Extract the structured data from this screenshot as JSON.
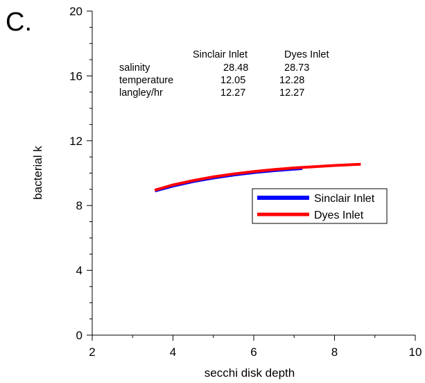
{
  "chart_data": {
    "type": "line",
    "panel_label": "C.",
    "xlabel": "secchi disk depth",
    "ylabel": "bacterial k",
    "xlim": [
      2,
      10
    ],
    "ylim": [
      0,
      20
    ],
    "x_ticks": [
      "2",
      "4",
      "6",
      "8",
      "10"
    ],
    "y_ticks": [
      "0",
      "4",
      "8",
      "12",
      "16",
      "20"
    ],
    "grid": false,
    "legend_position": "center-right",
    "series": [
      {
        "name": "Sinclair Inlet",
        "color": "#0000ff",
        "x": [
          3.55,
          4.0,
          4.5,
          5.0,
          5.5,
          6.0,
          6.5,
          7.0,
          7.2
        ],
        "y": [
          8.92,
          9.22,
          9.5,
          9.72,
          9.9,
          10.05,
          10.17,
          10.27,
          10.3
        ]
      },
      {
        "name": "Dyes Inlet",
        "color": "#ff0000",
        "x": [
          3.55,
          4.0,
          4.5,
          5.0,
          5.5,
          6.0,
          6.5,
          7.0,
          7.5,
          8.0,
          8.65
        ],
        "y": [
          8.95,
          9.27,
          9.54,
          9.77,
          9.95,
          10.1,
          10.22,
          10.32,
          10.4,
          10.47,
          10.55
        ]
      }
    ],
    "table": {
      "columns": [
        "",
        "Sinclair Inlet",
        "Dyes Inlet"
      ],
      "rows": [
        [
          "salinity",
          "28.48",
          "28.73"
        ],
        [
          "temperature",
          "12.05",
          "12.28"
        ],
        [
          "langley/hr",
          "12.27",
          "12.27"
        ]
      ]
    }
  }
}
